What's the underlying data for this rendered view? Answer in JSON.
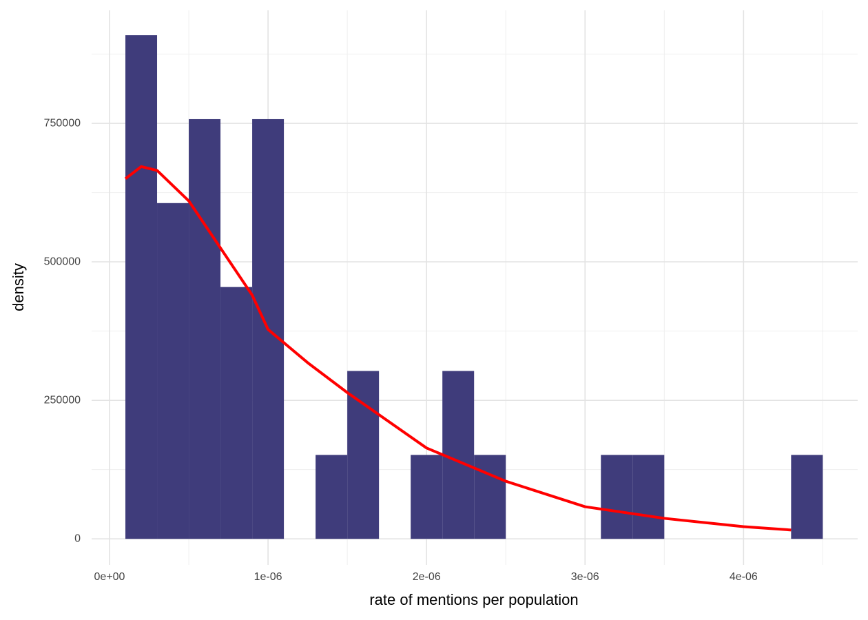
{
  "chart_data": {
    "type": "histogram",
    "x_label": "rate of mentions per population",
    "y_label": "density",
    "bins": [
      1e-07,
      3e-07,
      5e-07,
      7e-07,
      9e-07,
      1.1e-06,
      1.3e-06,
      1.5e-06,
      1.7e-06,
      1.9e-06,
      2.1e-06,
      2.3e-06,
      2.5e-06,
      2.7e-06,
      2.9e-06,
      3.1e-06,
      3.3e-06,
      3.5e-06,
      3.7e-06,
      3.9e-06,
      4.1e-06,
      4.3e-06,
      4.5e-06
    ],
    "values": [
      909091,
      606061,
      757576,
      454545,
      757576,
      0,
      151515,
      303030,
      0,
      151515,
      303030,
      151515,
      0,
      0,
      0,
      151515,
      151515,
      0,
      0,
      0,
      0,
      151515
    ],
    "color": "#3f3c7b",
    "density_curve": {
      "color": "#ff0000",
      "x": [
        1e-07,
        2e-07,
        3e-07,
        5e-07,
        7e-07,
        9e-07,
        1e-06,
        1.25e-06,
        1.5e-06,
        2e-06,
        2.5e-06,
        3e-06,
        3.5e-06,
        4e-06,
        4.3e-06
      ],
      "y": [
        650000,
        672000,
        665000,
        610000,
        525000,
        440000,
        378000,
        318000,
        264000,
        164000,
        104000,
        58000,
        37000,
        22000,
        16000
      ]
    },
    "xlim": [
      -1.13e-07,
      4.72e-06
    ],
    "ylim": [
      -47000,
      954000
    ],
    "xticks": [
      {
        "value": 0,
        "label": "0e+00"
      },
      {
        "value": 1e-06,
        "label": "1e-06"
      },
      {
        "value": 2e-06,
        "label": "2e-06"
      },
      {
        "value": 3e-06,
        "label": "3e-06"
      },
      {
        "value": 4e-06,
        "label": "4e-06"
      }
    ],
    "yticks": [
      0,
      250000,
      500000,
      750000
    ],
    "x_minor_grid": [
      5e-07,
      1.5e-06,
      2.5e-06,
      3.5e-06,
      4.5e-06
    ],
    "y_minor_grid": [
      125000,
      375000,
      625000,
      875000
    ],
    "grid": true
  }
}
